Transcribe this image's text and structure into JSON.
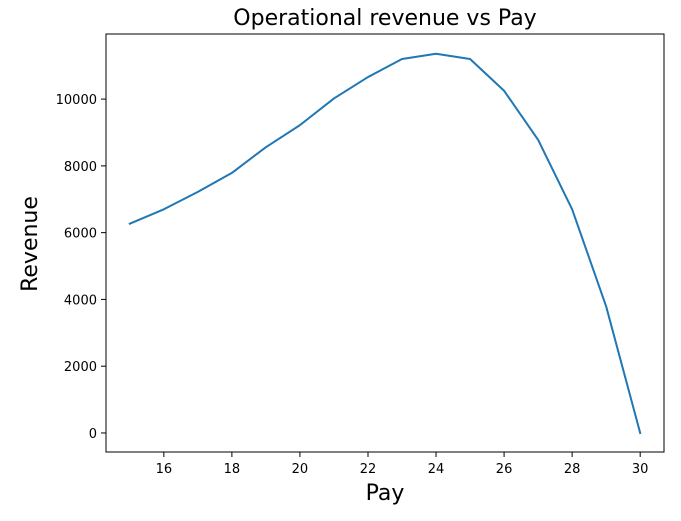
{
  "chart_data": {
    "type": "line",
    "title": "Operational revenue vs Pay",
    "xlabel": "Pay",
    "ylabel": "Revenue",
    "xlim": [
      14.3,
      30.7
    ],
    "ylim": [
      -570,
      11950
    ],
    "xticks": [
      16,
      18,
      20,
      22,
      24,
      26,
      28,
      30
    ],
    "yticks": [
      0,
      2000,
      4000,
      6000,
      8000,
      10000
    ],
    "grid": false,
    "legend": "none",
    "line_color": "#1f77b4",
    "x": [
      15,
      16,
      17,
      18,
      19,
      20,
      21,
      22,
      23,
      24,
      25,
      26,
      27,
      28,
      29,
      30
    ],
    "series": [
      {
        "values": [
          6270,
          6700,
          7220,
          7790,
          8560,
          9220,
          10020,
          10660,
          11200,
          11360,
          11200,
          10250,
          8780,
          6700,
          3790,
          0
        ]
      }
    ]
  }
}
